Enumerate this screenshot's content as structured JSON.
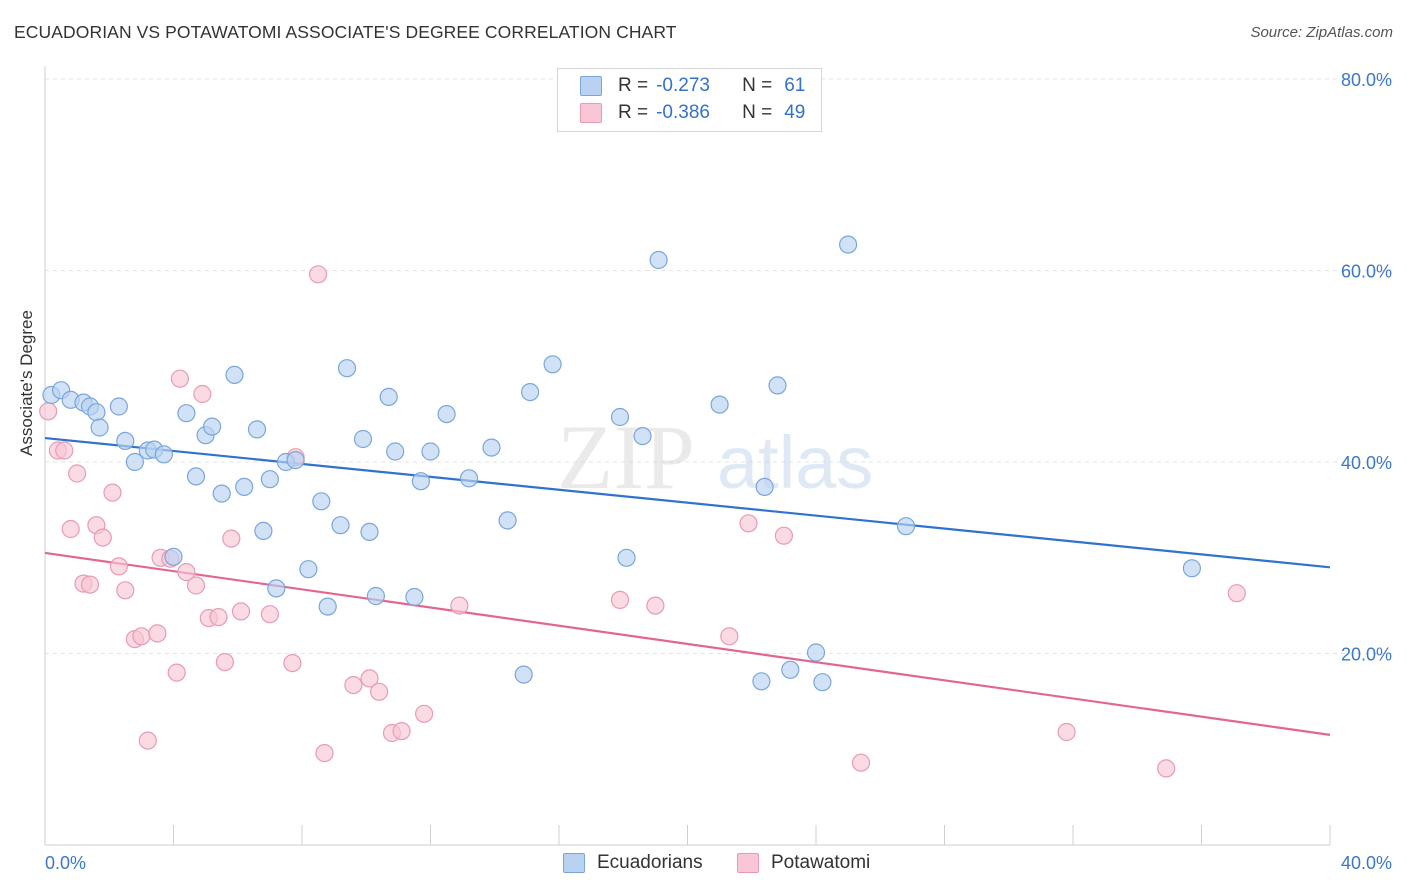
{
  "title": "ECUADORIAN VS POTAWATOMI ASSOCIATE'S DEGREE CORRELATION CHART",
  "source": "Source: ZipAtlas.com",
  "watermark": {
    "zip": "ZIP",
    "atlas": "atlas"
  },
  "legend": {
    "rows": [
      {
        "r_label": "R =",
        "r_value": "-0.273",
        "n_label": "N =",
        "n_value": "61"
      },
      {
        "r_label": "R =",
        "r_value": "-0.386",
        "n_label": "N =",
        "n_value": "49"
      }
    ]
  },
  "bottom_legend": {
    "ecuadorians": "Ecuadorians",
    "potawatomi": "Potawatomi"
  },
  "colors": {
    "blue_fill": "#b9d2f2",
    "blue_stroke": "#7aa6dc",
    "blue_line": "#2f73cf",
    "pink_fill": "#f8c6d4",
    "pink_stroke": "#e99bb3",
    "pink_line": "#e36592",
    "tick_text": "#3b78c9",
    "grid": "#e3e3e3"
  },
  "chart_data": {
    "type": "scatter",
    "title": "ECUADORIAN VS POTAWATOMI ASSOCIATE'S DEGREE CORRELATION CHART",
    "xlabel": "",
    "ylabel": "Associate's Degree",
    "xlim": [
      0,
      40
    ],
    "ylim": [
      0,
      80
    ],
    "x_ticks": [
      0,
      40
    ],
    "x_tick_labels": [
      "0.0%",
      "40.0%"
    ],
    "y_ticks": [
      20,
      40,
      60,
      80
    ],
    "y_tick_labels": [
      "20.0%",
      "40.0%",
      "60.0%",
      "80.0%"
    ],
    "grid": true,
    "legend_position": "top-center",
    "series": [
      {
        "name": "Ecuadorians",
        "R": -0.273,
        "N": 61,
        "trend": {
          "x": [
            0,
            40
          ],
          "y": [
            42.5,
            29.0
          ]
        },
        "points": [
          [
            0.2,
            47.0
          ],
          [
            0.5,
            47.5
          ],
          [
            0.8,
            46.5
          ],
          [
            1.2,
            46.2
          ],
          [
            1.4,
            45.8
          ],
          [
            1.6,
            45.2
          ],
          [
            1.7,
            43.6
          ],
          [
            2.3,
            45.8
          ],
          [
            2.5,
            42.2
          ],
          [
            2.8,
            40.0
          ],
          [
            3.2,
            41.2
          ],
          [
            3.4,
            41.3
          ],
          [
            3.7,
            40.8
          ],
          [
            4.0,
            30.1
          ],
          [
            4.4,
            45.1
          ],
          [
            4.7,
            38.5
          ],
          [
            5.0,
            42.8
          ],
          [
            5.2,
            43.7
          ],
          [
            5.5,
            36.7
          ],
          [
            5.9,
            49.1
          ],
          [
            6.2,
            37.4
          ],
          [
            6.6,
            43.4
          ],
          [
            6.8,
            32.8
          ],
          [
            7.0,
            38.2
          ],
          [
            7.2,
            26.8
          ],
          [
            7.5,
            40.0
          ],
          [
            7.8,
            40.2
          ],
          [
            8.2,
            28.8
          ],
          [
            8.6,
            35.9
          ],
          [
            8.8,
            24.9
          ],
          [
            9.2,
            33.4
          ],
          [
            9.4,
            49.8
          ],
          [
            9.9,
            42.4
          ],
          [
            10.1,
            32.7
          ],
          [
            10.3,
            26.0
          ],
          [
            10.7,
            46.8
          ],
          [
            10.9,
            41.1
          ],
          [
            11.5,
            25.9
          ],
          [
            11.7,
            38.0
          ],
          [
            12.0,
            41.1
          ],
          [
            12.5,
            45.0
          ],
          [
            13.2,
            38.3
          ],
          [
            13.9,
            41.5
          ],
          [
            14.4,
            33.9
          ],
          [
            14.9,
            17.8
          ],
          [
            15.1,
            47.3
          ],
          [
            15.8,
            50.2
          ],
          [
            17.9,
            44.7
          ],
          [
            18.1,
            30.0
          ],
          [
            18.6,
            42.7
          ],
          [
            19.1,
            61.1
          ],
          [
            21.0,
            46.0
          ],
          [
            22.3,
            17.1
          ],
          [
            22.4,
            37.4
          ],
          [
            22.8,
            48.0
          ],
          [
            23.2,
            18.3
          ],
          [
            24.0,
            20.1
          ],
          [
            24.2,
            17.0
          ],
          [
            25.0,
            62.7
          ],
          [
            26.8,
            33.3
          ],
          [
            35.7,
            28.9
          ]
        ]
      },
      {
        "name": "Potawatomi",
        "R": -0.386,
        "N": 49,
        "trend": {
          "x": [
            0,
            40
          ],
          "y": [
            30.5,
            11.5
          ]
        },
        "points": [
          [
            0.1,
            45.3
          ],
          [
            0.4,
            41.2
          ],
          [
            0.6,
            41.2
          ],
          [
            0.8,
            33.0
          ],
          [
            1.0,
            38.8
          ],
          [
            1.2,
            27.3
          ],
          [
            1.4,
            27.2
          ],
          [
            1.6,
            33.4
          ],
          [
            1.8,
            32.1
          ],
          [
            2.1,
            36.8
          ],
          [
            2.3,
            29.1
          ],
          [
            2.5,
            26.6
          ],
          [
            2.8,
            21.5
          ],
          [
            3.0,
            21.8
          ],
          [
            3.2,
            10.9
          ],
          [
            3.5,
            22.1
          ],
          [
            3.6,
            30.0
          ],
          [
            3.9,
            29.9
          ],
          [
            4.1,
            18.0
          ],
          [
            4.2,
            48.7
          ],
          [
            4.4,
            28.5
          ],
          [
            4.7,
            27.1
          ],
          [
            4.9,
            47.1
          ],
          [
            5.1,
            23.7
          ],
          [
            5.4,
            23.8
          ],
          [
            5.6,
            19.1
          ],
          [
            5.8,
            32.0
          ],
          [
            6.1,
            24.4
          ],
          [
            7.0,
            24.1
          ],
          [
            7.7,
            19.0
          ],
          [
            7.8,
            40.5
          ],
          [
            8.5,
            59.6
          ],
          [
            8.7,
            9.6
          ],
          [
            9.6,
            16.7
          ],
          [
            10.1,
            17.4
          ],
          [
            10.4,
            16.0
          ],
          [
            10.8,
            11.7
          ],
          [
            11.1,
            11.9
          ],
          [
            11.8,
            13.7
          ],
          [
            12.9,
            25.0
          ],
          [
            17.9,
            25.6
          ],
          [
            19.0,
            25.0
          ],
          [
            21.3,
            21.8
          ],
          [
            21.9,
            33.6
          ],
          [
            23.0,
            32.3
          ],
          [
            25.4,
            8.6
          ],
          [
            31.8,
            11.8
          ],
          [
            34.9,
            8.0
          ],
          [
            37.1,
            26.3
          ]
        ]
      }
    ]
  }
}
